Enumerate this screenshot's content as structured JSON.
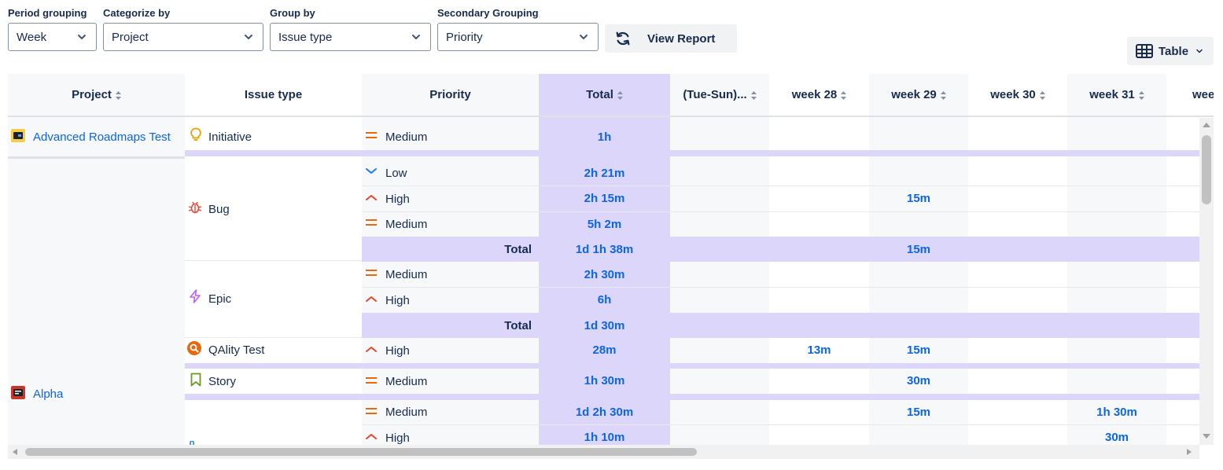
{
  "filters": {
    "period": {
      "label": "Period grouping",
      "value": "Week"
    },
    "categorize": {
      "label": "Categorize by",
      "value": "Project"
    },
    "group": {
      "label": "Group by",
      "value": "Issue type"
    },
    "secondary": {
      "label": "Secondary Grouping",
      "value": "Priority"
    }
  },
  "view_report_label": "View Report",
  "table_toggle_label": "Table",
  "headers": {
    "project": "Project",
    "issue_type": "Issue type",
    "priority": "Priority",
    "total": "Total",
    "period0": "(Tue-Sun)...",
    "w28": "week 28",
    "w29": "week 29",
    "w30": "week 30",
    "w31": "week 31",
    "w32": "wee"
  },
  "projects": {
    "p1": "Advanced Roadmaps Test",
    "p2": "Alpha"
  },
  "issue_types": {
    "initiative": "Initiative",
    "bug": "Bug",
    "epic": "Epic",
    "qality": "QAlity Test",
    "story": "Story"
  },
  "priorities": {
    "r1": "Medium",
    "r2": "Low",
    "r3": "High",
    "r4": "Medium",
    "r5": "Medium",
    "r6": "High",
    "r7": "High",
    "r8": "Medium",
    "r9": "Medium",
    "r10": "High"
  },
  "total_label": "Total",
  "values": {
    "r1_total": "1h",
    "r2_total": "2h 21m",
    "r3_total": "2h 15m",
    "r3_w29": "15m",
    "r4_total": "5h 2m",
    "bug_total": "1d 1h 38m",
    "bug_w29": "15m",
    "r5_total": "2h 30m",
    "r6_total": "6h",
    "epic_total": "1d 30m",
    "r7_total": "28m",
    "r7_w28": "13m",
    "r7_w29": "15m",
    "r8_total": "1h 30m",
    "r8_w29": "30m",
    "r9_total": "1d 2h 30m",
    "r9_w29": "15m",
    "r9_w31": "1h 30m",
    "r10_total": "1h 10m",
    "r10_w31": "30m"
  },
  "colors": {
    "accent": "#0c66e4",
    "total_column": "#dcd7fa",
    "medium_priority": "#e56910",
    "high_priority": "#e34935",
    "low_priority": "#1d7afc"
  }
}
